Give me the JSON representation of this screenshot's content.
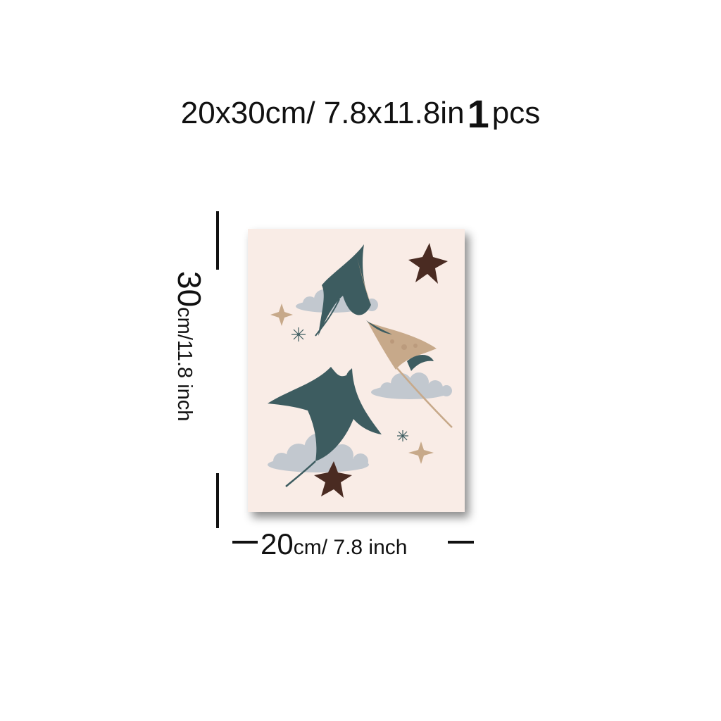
{
  "header": {
    "size_text": "20x30cm/ 7.8x11.8in",
    "quantity": "1",
    "quantity_unit": "pcs"
  },
  "height_label": {
    "value": "30",
    "unit_text": "cm/11.8 inch"
  },
  "width_label": {
    "value": "20",
    "unit_text": "cm/ 7.8 inch"
  },
  "poster": {
    "background_color": "#f9ece6",
    "ray_color": "#3d5c60",
    "tan_color": "#c7a98a",
    "starfish_color": "#4a2b22",
    "cloud_color": "#b9c2cb",
    "elements": [
      "manta-ray-icon",
      "manta-ray-icon",
      "stingray-icon",
      "starfish-icon",
      "starfish-icon",
      "cloud-icon",
      "sparkle-icon"
    ]
  }
}
